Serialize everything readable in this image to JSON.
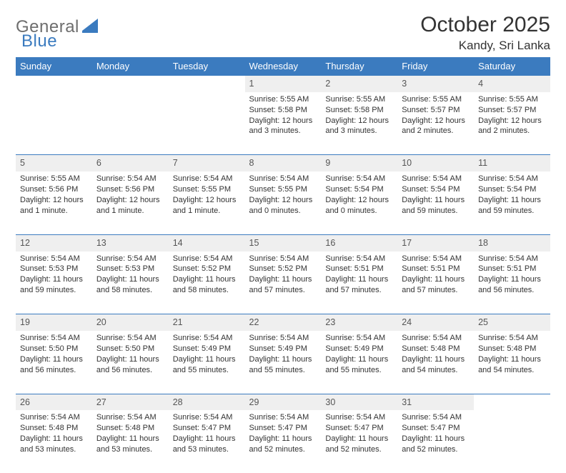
{
  "logo": {
    "text1": "General",
    "text2": "Blue"
  },
  "title": "October 2025",
  "location": "Kandy, Sri Lanka",
  "colors": {
    "header_bg": "#3b7bbf",
    "header_text": "#ffffff",
    "daynum_bg": "#efefef",
    "border": "#3b7bbf",
    "body_text": "#333333",
    "logo_gray": "#6e6e6e",
    "logo_blue": "#3b7bbf",
    "page_bg": "#ffffff"
  },
  "typography": {
    "title_fontsize": 30,
    "location_fontsize": 17,
    "header_fontsize": 13,
    "daynum_fontsize": 12.5,
    "detail_fontsize": 11,
    "logo_fontsize": 24
  },
  "dayHeaders": [
    "Sunday",
    "Monday",
    "Tuesday",
    "Wednesday",
    "Thursday",
    "Friday",
    "Saturday"
  ],
  "weeks": [
    {
      "nums": [
        "",
        "",
        "",
        "1",
        "2",
        "3",
        "4"
      ],
      "cells": [
        [],
        [],
        [],
        [
          "Sunrise: 5:55 AM",
          "Sunset: 5:58 PM",
          "Daylight: 12 hours",
          "and 3 minutes."
        ],
        [
          "Sunrise: 5:55 AM",
          "Sunset: 5:58 PM",
          "Daylight: 12 hours",
          "and 3 minutes."
        ],
        [
          "Sunrise: 5:55 AM",
          "Sunset: 5:57 PM",
          "Daylight: 12 hours",
          "and 2 minutes."
        ],
        [
          "Sunrise: 5:55 AM",
          "Sunset: 5:57 PM",
          "Daylight: 12 hours",
          "and 2 minutes."
        ]
      ]
    },
    {
      "nums": [
        "5",
        "6",
        "7",
        "8",
        "9",
        "10",
        "11"
      ],
      "cells": [
        [
          "Sunrise: 5:55 AM",
          "Sunset: 5:56 PM",
          "Daylight: 12 hours",
          "and 1 minute."
        ],
        [
          "Sunrise: 5:54 AM",
          "Sunset: 5:56 PM",
          "Daylight: 12 hours",
          "and 1 minute."
        ],
        [
          "Sunrise: 5:54 AM",
          "Sunset: 5:55 PM",
          "Daylight: 12 hours",
          "and 1 minute."
        ],
        [
          "Sunrise: 5:54 AM",
          "Sunset: 5:55 PM",
          "Daylight: 12 hours",
          "and 0 minutes."
        ],
        [
          "Sunrise: 5:54 AM",
          "Sunset: 5:54 PM",
          "Daylight: 12 hours",
          "and 0 minutes."
        ],
        [
          "Sunrise: 5:54 AM",
          "Sunset: 5:54 PM",
          "Daylight: 11 hours",
          "and 59 minutes."
        ],
        [
          "Sunrise: 5:54 AM",
          "Sunset: 5:54 PM",
          "Daylight: 11 hours",
          "and 59 minutes."
        ]
      ]
    },
    {
      "nums": [
        "12",
        "13",
        "14",
        "15",
        "16",
        "17",
        "18"
      ],
      "cells": [
        [
          "Sunrise: 5:54 AM",
          "Sunset: 5:53 PM",
          "Daylight: 11 hours",
          "and 59 minutes."
        ],
        [
          "Sunrise: 5:54 AM",
          "Sunset: 5:53 PM",
          "Daylight: 11 hours",
          "and 58 minutes."
        ],
        [
          "Sunrise: 5:54 AM",
          "Sunset: 5:52 PM",
          "Daylight: 11 hours",
          "and 58 minutes."
        ],
        [
          "Sunrise: 5:54 AM",
          "Sunset: 5:52 PM",
          "Daylight: 11 hours",
          "and 57 minutes."
        ],
        [
          "Sunrise: 5:54 AM",
          "Sunset: 5:51 PM",
          "Daylight: 11 hours",
          "and 57 minutes."
        ],
        [
          "Sunrise: 5:54 AM",
          "Sunset: 5:51 PM",
          "Daylight: 11 hours",
          "and 57 minutes."
        ],
        [
          "Sunrise: 5:54 AM",
          "Sunset: 5:51 PM",
          "Daylight: 11 hours",
          "and 56 minutes."
        ]
      ]
    },
    {
      "nums": [
        "19",
        "20",
        "21",
        "22",
        "23",
        "24",
        "25"
      ],
      "cells": [
        [
          "Sunrise: 5:54 AM",
          "Sunset: 5:50 PM",
          "Daylight: 11 hours",
          "and 56 minutes."
        ],
        [
          "Sunrise: 5:54 AM",
          "Sunset: 5:50 PM",
          "Daylight: 11 hours",
          "and 56 minutes."
        ],
        [
          "Sunrise: 5:54 AM",
          "Sunset: 5:49 PM",
          "Daylight: 11 hours",
          "and 55 minutes."
        ],
        [
          "Sunrise: 5:54 AM",
          "Sunset: 5:49 PM",
          "Daylight: 11 hours",
          "and 55 minutes."
        ],
        [
          "Sunrise: 5:54 AM",
          "Sunset: 5:49 PM",
          "Daylight: 11 hours",
          "and 55 minutes."
        ],
        [
          "Sunrise: 5:54 AM",
          "Sunset: 5:48 PM",
          "Daylight: 11 hours",
          "and 54 minutes."
        ],
        [
          "Sunrise: 5:54 AM",
          "Sunset: 5:48 PM",
          "Daylight: 11 hours",
          "and 54 minutes."
        ]
      ]
    },
    {
      "nums": [
        "26",
        "27",
        "28",
        "29",
        "30",
        "31",
        ""
      ],
      "cells": [
        [
          "Sunrise: 5:54 AM",
          "Sunset: 5:48 PM",
          "Daylight: 11 hours",
          "and 53 minutes."
        ],
        [
          "Sunrise: 5:54 AM",
          "Sunset: 5:48 PM",
          "Daylight: 11 hours",
          "and 53 minutes."
        ],
        [
          "Sunrise: 5:54 AM",
          "Sunset: 5:47 PM",
          "Daylight: 11 hours",
          "and 53 minutes."
        ],
        [
          "Sunrise: 5:54 AM",
          "Sunset: 5:47 PM",
          "Daylight: 11 hours",
          "and 52 minutes."
        ],
        [
          "Sunrise: 5:54 AM",
          "Sunset: 5:47 PM",
          "Daylight: 11 hours",
          "and 52 minutes."
        ],
        [
          "Sunrise: 5:54 AM",
          "Sunset: 5:47 PM",
          "Daylight: 11 hours",
          "and 52 minutes."
        ],
        []
      ]
    }
  ]
}
